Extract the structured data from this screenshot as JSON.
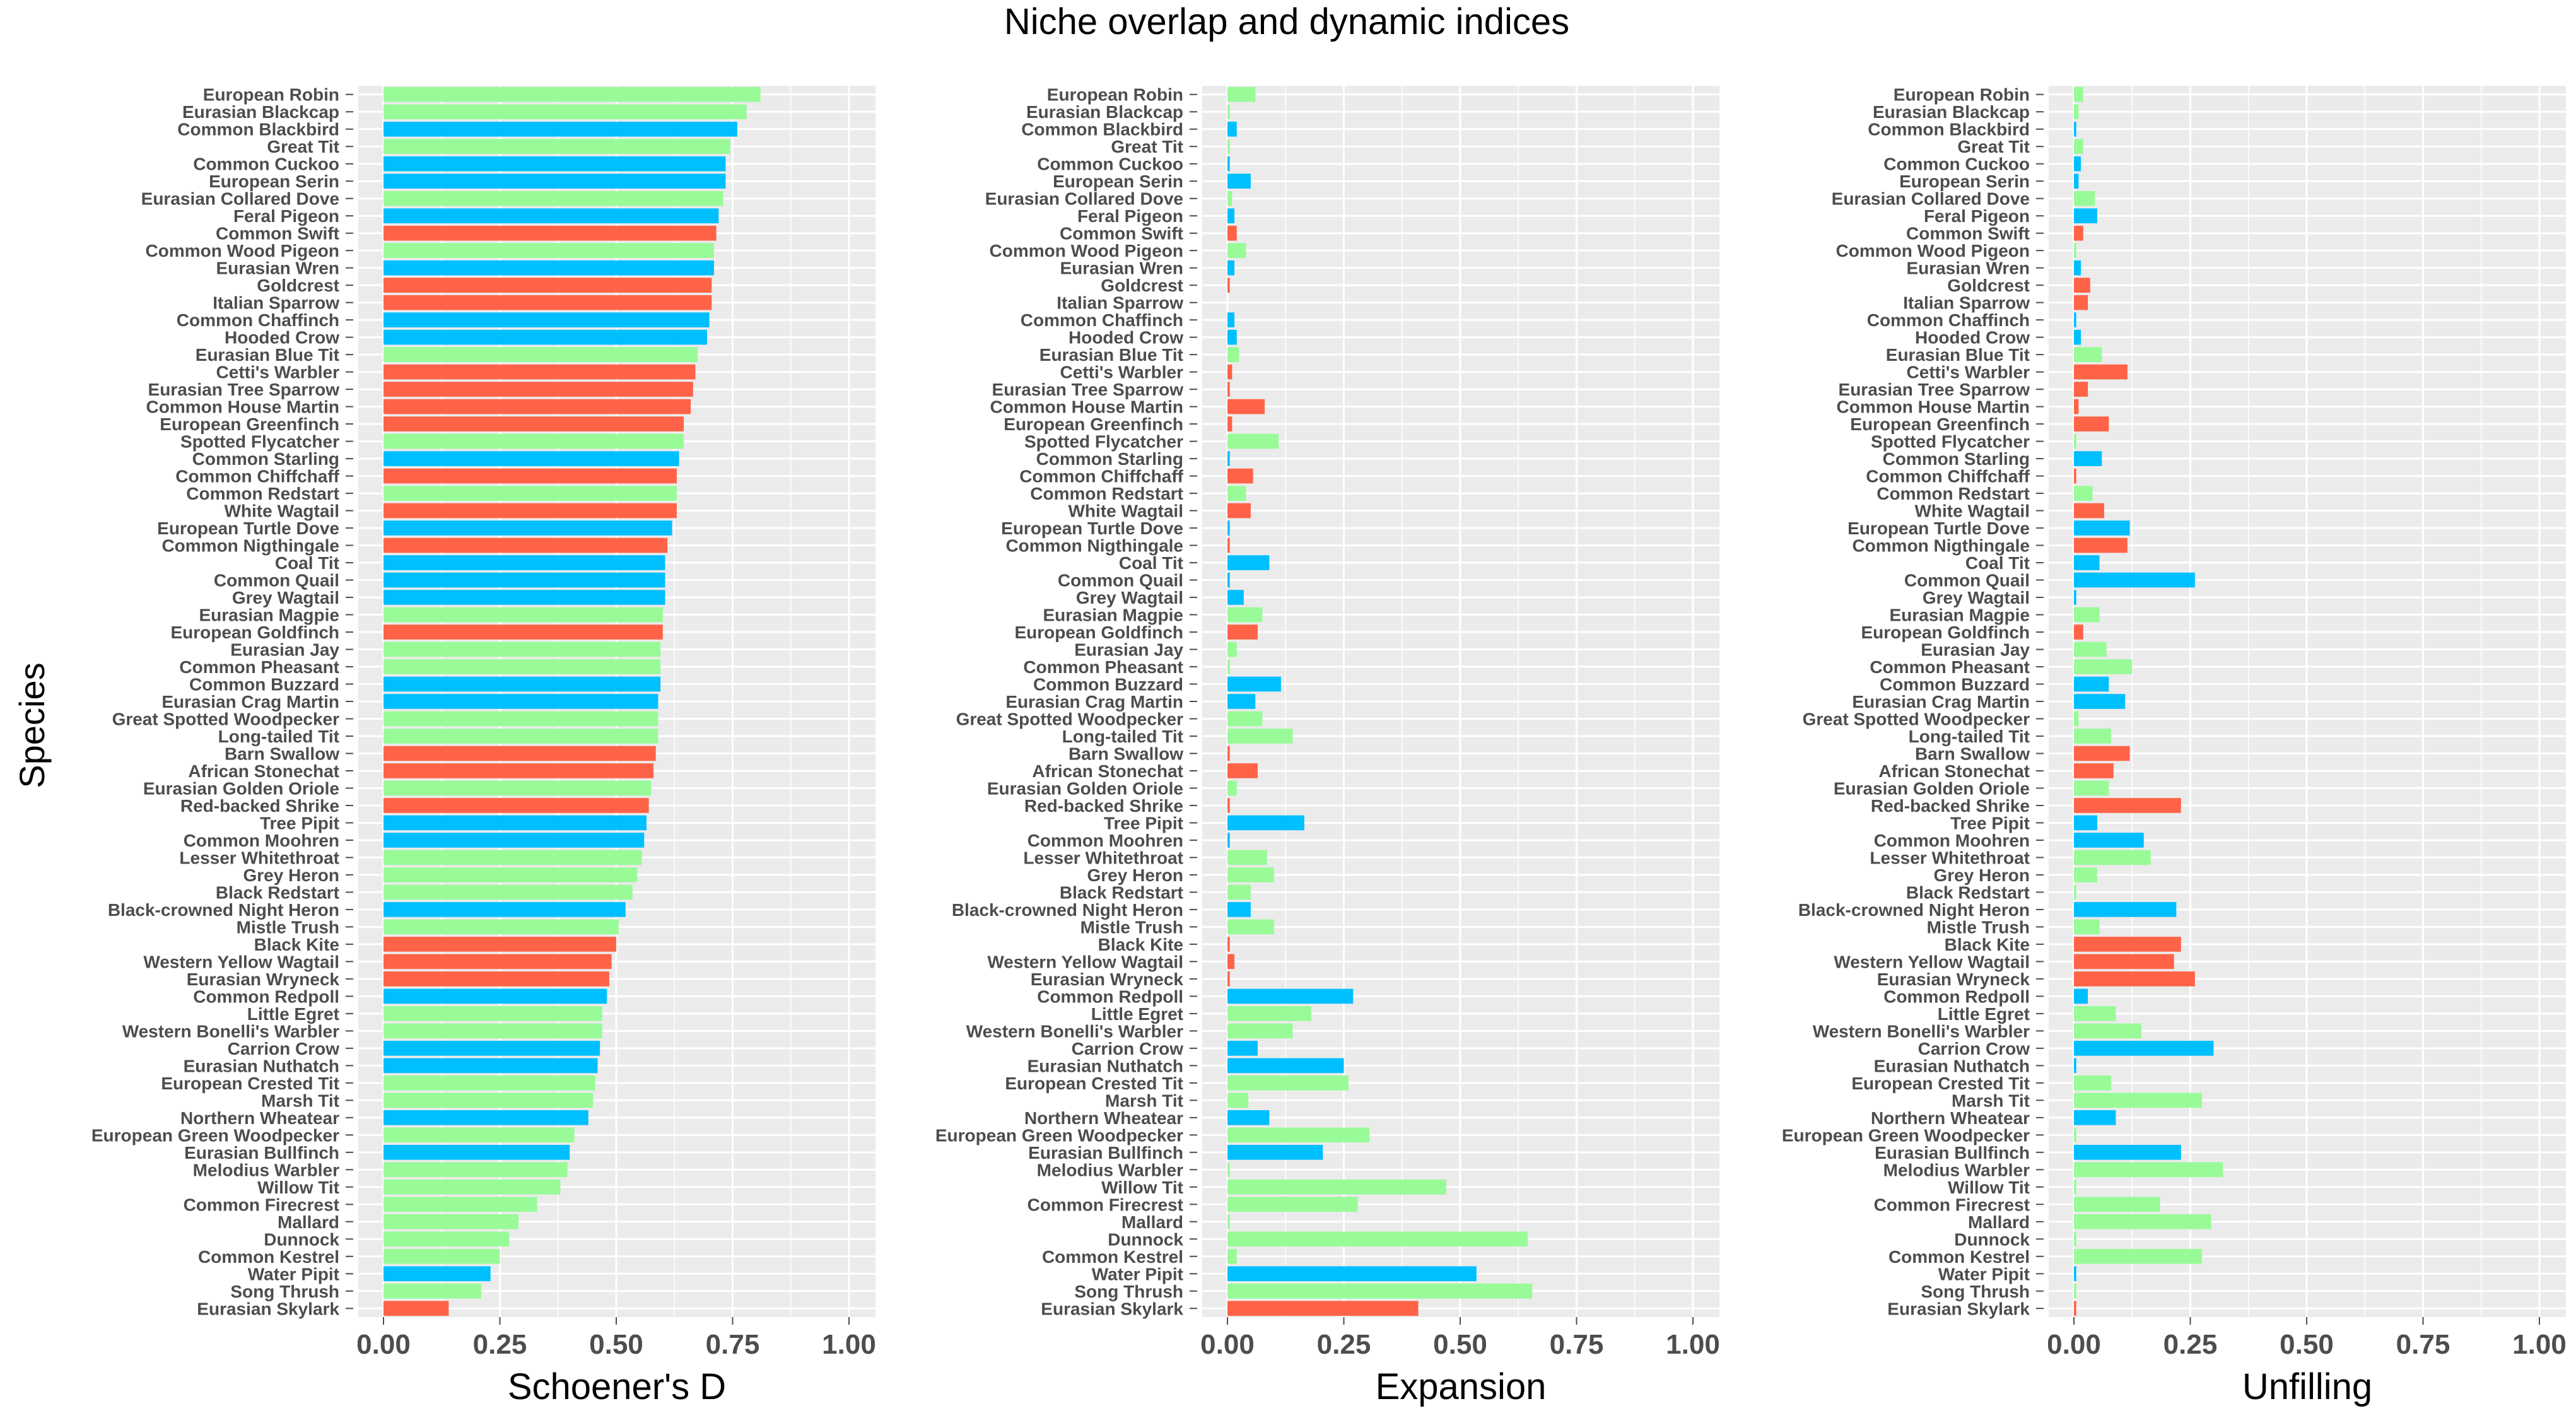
{
  "title": "Niche overlap and dynamic indices",
  "colors": {
    "green": "#98FB98",
    "blue": "#00BFFF",
    "red": "#FF6347",
    "panel_bg": "#EBEBEB",
    "grid": "#FFFFFF"
  },
  "chart_data": {
    "type": "bar",
    "orientation": "horizontal",
    "title": "Niche overlap and dynamic indices",
    "ylabel": "Species",
    "species": [
      "European Robin",
      "Eurasian Blackcap",
      "Common Blackbird",
      "Great Tit",
      "Common Cuckoo",
      "European Serin",
      "Eurasian Collared Dove",
      "Feral Pigeon",
      "Common Swift",
      "Common Wood Pigeon",
      "Eurasian Wren",
      "Goldcrest",
      "Italian Sparrow",
      "Common Chaffinch",
      "Hooded Crow",
      "Eurasian Blue Tit",
      "Cetti's Warbler",
      "Eurasian Tree Sparrow",
      "Common House Martin",
      "European Greenfinch",
      "Spotted Flycatcher",
      "Common Starling",
      "Common Chiffchaff",
      "Common Redstart",
      "White Wagtail",
      "European Turtle Dove",
      "Common Nigthingale",
      "Coal Tit",
      "Common Quail",
      "Grey Wagtail",
      "Eurasian Magpie",
      "European Goldfinch",
      "Eurasian Jay",
      "Common Pheasant",
      "Common Buzzard",
      "Eurasian Crag Martin",
      "Great Spotted Woodpecker",
      "Long-tailed Tit",
      "Barn Swallow",
      "African Stonechat",
      "Eurasian Golden Oriole",
      "Red-backed Shrike",
      "Tree Pipit",
      "Common Moohren",
      "Lesser Whitethroat",
      "Grey Heron",
      "Black Redstart",
      "Black-crowned Night Heron",
      "Mistle Trush",
      "Black Kite",
      "Western Yellow Wagtail",
      "Eurasian Wryneck",
      "Common Redpoll",
      "Little Egret",
      "Western Bonelli's Warbler",
      "Carrion Crow",
      "Eurasian Nuthatch",
      "European Crested Tit",
      "Marsh Tit",
      "Northern Wheatear",
      "European Green Woodpecker",
      "Eurasian Bullfinch",
      "Melodius Warbler",
      "Willow Tit",
      "Common Firecrest",
      "Mallard",
      "Dunnock",
      "Common Kestrel",
      "Water Pipit",
      "Song Thrush",
      "Eurasian Skylark"
    ],
    "groups": [
      "green",
      "green",
      "blue",
      "green",
      "blue",
      "blue",
      "green",
      "blue",
      "red",
      "green",
      "blue",
      "red",
      "red",
      "blue",
      "blue",
      "green",
      "red",
      "red",
      "red",
      "red",
      "green",
      "blue",
      "red",
      "green",
      "red",
      "blue",
      "red",
      "blue",
      "blue",
      "blue",
      "green",
      "red",
      "green",
      "green",
      "blue",
      "blue",
      "green",
      "green",
      "red",
      "red",
      "green",
      "red",
      "blue",
      "blue",
      "green",
      "green",
      "green",
      "blue",
      "green",
      "red",
      "red",
      "red",
      "blue",
      "green",
      "green",
      "blue",
      "blue",
      "green",
      "green",
      "blue",
      "green",
      "blue",
      "green",
      "green",
      "green",
      "green",
      "green",
      "green",
      "blue",
      "green",
      "red"
    ],
    "panels": [
      {
        "xlabel": "Schoener's D",
        "xlim": [
          0,
          1
        ],
        "ticks": [
          "0.00",
          "0.25",
          "0.50",
          "0.75",
          "1.00"
        ],
        "values": [
          0.81,
          0.78,
          0.76,
          0.745,
          0.735,
          0.735,
          0.73,
          0.72,
          0.715,
          0.71,
          0.71,
          0.705,
          0.705,
          0.7,
          0.695,
          0.675,
          0.67,
          0.665,
          0.66,
          0.645,
          0.645,
          0.635,
          0.63,
          0.63,
          0.63,
          0.62,
          0.61,
          0.605,
          0.605,
          0.605,
          0.6,
          0.6,
          0.595,
          0.595,
          0.595,
          0.59,
          0.59,
          0.59,
          0.585,
          0.58,
          0.575,
          0.57,
          0.565,
          0.56,
          0.555,
          0.545,
          0.535,
          0.52,
          0.505,
          0.5,
          0.49,
          0.485,
          0.48,
          0.47,
          0.47,
          0.465,
          0.46,
          0.455,
          0.45,
          0.44,
          0.41,
          0.4,
          0.395,
          0.38,
          0.33,
          0.29,
          0.27,
          0.25,
          0.23,
          0.21,
          0.14
        ]
      },
      {
        "xlabel": "Expansion",
        "xlim": [
          0,
          1
        ],
        "ticks": [
          "0.00",
          "0.25",
          "0.50",
          "0.75",
          "1.00"
        ],
        "values": [
          0.06,
          0.005,
          0.02,
          0.005,
          0.005,
          0.05,
          0.01,
          0.015,
          0.02,
          0.04,
          0.015,
          0.005,
          0,
          0.015,
          0.02,
          0.025,
          0.01,
          0.005,
          0.08,
          0.01,
          0.11,
          0.005,
          0.055,
          0.04,
          0.05,
          0.005,
          0.005,
          0.09,
          0.005,
          0.035,
          0.075,
          0.065,
          0.02,
          0.005,
          0.115,
          0.06,
          0.075,
          0.14,
          0.005,
          0.065,
          0.02,
          0.005,
          0.165,
          0.005,
          0.085,
          0.1,
          0.05,
          0.05,
          0.1,
          0.005,
          0.015,
          0.005,
          0.27,
          0.18,
          0.14,
          0.065,
          0.25,
          0.26,
          0.045,
          0.09,
          0.305,
          0.205,
          0.005,
          0.47,
          0.28,
          0.005,
          0.645,
          0.02,
          0.535,
          0.655,
          0.41
        ]
      },
      {
        "xlabel": "Unfilling",
        "xlim": [
          0,
          1
        ],
        "ticks": [
          "0.00",
          "0.25",
          "0.50",
          "0.75",
          "1.00"
        ],
        "values": [
          0.02,
          0.01,
          0.005,
          0.02,
          0.015,
          0.01,
          0.045,
          0.05,
          0.02,
          0.005,
          0.015,
          0.035,
          0.03,
          0.005,
          0.015,
          0.06,
          0.115,
          0.03,
          0.01,
          0.075,
          0.005,
          0.06,
          0.005,
          0.04,
          0.065,
          0.12,
          0.115,
          0.055,
          0.26,
          0.005,
          0.055,
          0.02,
          0.07,
          0.125,
          0.075,
          0.11,
          0.01,
          0.08,
          0.12,
          0.085,
          0.075,
          0.23,
          0.05,
          0.15,
          0.165,
          0.05,
          0.005,
          0.22,
          0.055,
          0.23,
          0.215,
          0.26,
          0.03,
          0.09,
          0.145,
          0.3,
          0.005,
          0.08,
          0.275,
          0.09,
          0.005,
          0.23,
          0.32,
          0.005,
          0.185,
          0.295,
          0.005,
          0.275,
          0.005,
          0.005,
          0.005
        ]
      }
    ]
  }
}
